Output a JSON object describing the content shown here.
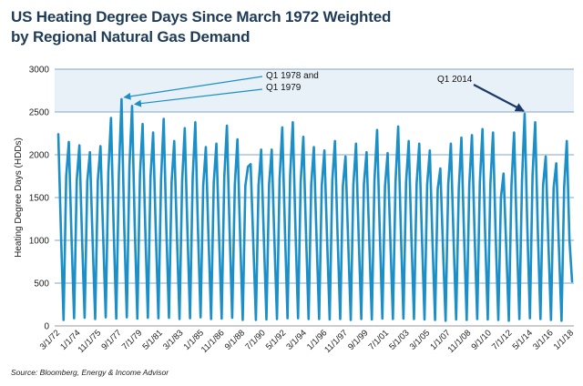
{
  "colors": {
    "series": "#1b8fc7",
    "arrow_light": "#1b8fc7",
    "arrow_dark": "#1d3a66",
    "band": "#e9f1f8",
    "grid": "#5b88ba",
    "title": "#1f3b57"
  },
  "chart_data": {
    "type": "line",
    "title": "US Heating Degree Days Since March 1972 Weighted by Regional Natural Gas Demand",
    "title_lines": [
      "US Heating Degree Days Since March 1972 Weighted",
      "by Regional Natural Gas Demand"
    ],
    "ylabel": "Heating Degree Days (HDDs)",
    "xlabel": "",
    "ylim": [
      0,
      3000
    ],
    "yticks": [
      "0",
      "500",
      "1000",
      "1500",
      "2000",
      "2500",
      "3000"
    ],
    "xticks": [
      "3/1/72",
      "1/1/74",
      "11/1/75",
      "9/1/77",
      "7/1/79",
      "5/1/81",
      "3/1/83",
      "1/1/85",
      "11/1/86",
      "9/1/88",
      "7/1/90",
      "5/1/92",
      "3/1/94",
      "1/1/96",
      "11/1/97",
      "9/1/99",
      "7/1/01",
      "5/1/03",
      "3/1/05",
      "1/1/07",
      "11/1/08",
      "9/1/10",
      "7/1/12",
      "5/1/14",
      "3/1/16",
      "1/1/18"
    ],
    "x_range": [
      "3/1/72",
      "1/1/18"
    ],
    "frequency": "quarterly",
    "grid": "horizontal",
    "shaded_band_y": [
      2500,
      3000
    ],
    "series": [
      {
        "values": [
          2240,
          1100,
          70,
          1750,
          2150,
          1050,
          90,
          1700,
          2110,
          1040,
          95,
          1690,
          2030,
          1020,
          80,
          1700,
          2100,
          1080,
          100,
          1800,
          2430,
          1160,
          85,
          1780,
          2650,
          1200,
          100,
          1860,
          2570,
          1180,
          85,
          1770,
          2360,
          1150,
          95,
          1740,
          2260,
          1110,
          90,
          1710,
          2420,
          1150,
          95,
          1680,
          2160,
          1080,
          80,
          1690,
          2310,
          1130,
          90,
          1730,
          2380,
          1140,
          100,
          1640,
          2090,
          1050,
          80,
          1670,
          2130,
          1070,
          85,
          1740,
          2340,
          1140,
          95,
          1650,
          2180,
          1060,
          70,
          1640,
          1860,
          1890,
          980,
          70,
          1640,
          2060,
          1040,
          75,
          1650,
          2060,
          1020,
          80,
          1720,
          2320,
          1140,
          90,
          1760,
          2380,
          1150,
          90,
          1680,
          2210,
          1100,
          80,
          1650,
          2090,
          1040,
          80,
          1640,
          2050,
          1030,
          75,
          1700,
          2160,
          1060,
          80,
          1630,
          1980,
          1010,
          70,
          1650,
          2130,
          1050,
          80,
          1660,
          2030,
          1020,
          75,
          1700,
          2290,
          1120,
          85,
          1630,
          2020,
          1040,
          80,
          1690,
          2330,
          1130,
          85,
          1680,
          2160,
          1060,
          80,
          1660,
          2130,
          1060,
          75,
          1650,
          2050,
          1010,
          70,
          1600,
          1840,
          920,
          60,
          1650,
          2130,
          1040,
          75,
          1600,
          2200,
          1060,
          70,
          1660,
          2230,
          1080,
          80,
          1680,
          2300,
          1090,
          75,
          1660,
          2260,
          1060,
          70,
          1500,
          1780,
          930,
          60,
          1650,
          2260,
          1080,
          80,
          1700,
          2480,
          1180,
          90,
          1760,
          2380,
          1120,
          80,
          1640,
          1980,
          980,
          70,
          1610,
          1900,
          920,
          60,
          1620,
          2160,
          1010,
          520
        ]
      }
    ],
    "annotations": [
      {
        "lines": [
          "Q1 1978 and",
          "Q1 1979"
        ],
        "targets": [
          2650,
          2570
        ]
      },
      {
        "lines": [
          "Q1 2014"
        ],
        "targets": [
          2480
        ]
      }
    ],
    "source": "Source: Bloomberg, Energy & Income Advisor"
  }
}
